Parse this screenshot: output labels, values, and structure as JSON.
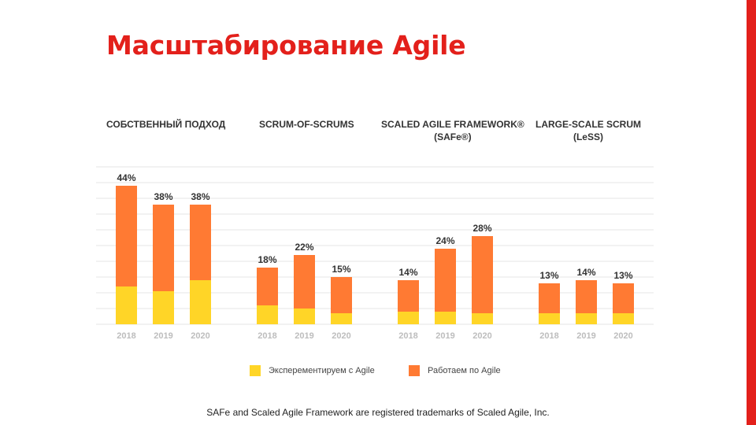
{
  "slide": {
    "title": "Масштабирование Agile"
  },
  "colors": {
    "experimenting": "#ffd527",
    "working": "#ff7a33",
    "grid": "#e6e6e6",
    "accent": "#e3201b"
  },
  "chart_data": {
    "type": "bar",
    "stacked": true,
    "categories": [
      "2018",
      "2019",
      "2020"
    ],
    "groups": [
      {
        "title": [
          "СОБСТВЕННЫЙ ПОДХОД"
        ],
        "totals": [
          44,
          38,
          38
        ],
        "labels": [
          "44%",
          "38%",
          "38%"
        ],
        "experimenting": [
          12,
          10.5,
          14
        ]
      },
      {
        "title": [
          "SCRUM-OF-SCRUMS"
        ],
        "totals": [
          18,
          22,
          15
        ],
        "labels": [
          "18%",
          "22%",
          "15%"
        ],
        "experimenting": [
          6,
          5,
          3.5
        ]
      },
      {
        "title": [
          "SCALED AGILE FRAMEWORK®",
          "(SAFe®)"
        ],
        "totals": [
          14,
          24,
          28
        ],
        "labels": [
          "14%",
          "24%",
          "28%"
        ],
        "experimenting": [
          4,
          4,
          3.5
        ]
      },
      {
        "title": [
          "LARGE-SCALE SCRUM",
          "(LeSS)"
        ],
        "totals": [
          13,
          14,
          13
        ],
        "labels": [
          "13%",
          "14%",
          "13%"
        ],
        "experimenting": [
          3.5,
          3.5,
          3.5
        ]
      }
    ],
    "legend": [
      {
        "key": "experimenting",
        "label": "Эксперементируем с Agile"
      },
      {
        "key": "working",
        "label": "Работаем по Agile"
      }
    ],
    "ylim": [
      0,
      50
    ],
    "grid": true
  },
  "footnote": "SAFe and Scaled Agile Framework are registered trademarks of Scaled Agile, Inc."
}
